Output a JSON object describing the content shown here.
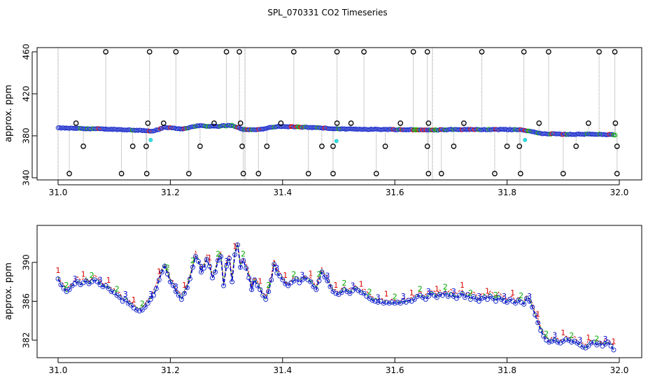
{
  "chart_data": [
    {
      "type": "scatter",
      "title": "SPL_070331  CO2 Timeseries",
      "xlabel": "",
      "ylabel": "approx. ppm",
      "xlim": [
        31.0,
        32.0
      ],
      "ylim": [
        338,
        464
      ],
      "x_ticks": [
        "31.0",
        "31.2",
        "31.4",
        "31.6",
        "31.8",
        "32.0"
      ],
      "y_ticks": [
        "340",
        "380",
        "420",
        "460"
      ],
      "baseline": [
        [
          31.0,
          387.5
        ],
        [
          31.05,
          386.8
        ],
        [
          31.1,
          386.2
        ],
        [
          31.15,
          385.0
        ],
        [
          31.17,
          384.5
        ],
        [
          31.19,
          388.0
        ],
        [
          31.22,
          386.5
        ],
        [
          31.25,
          389.5
        ],
        [
          31.28,
          389.0
        ],
        [
          31.31,
          390.0
        ],
        [
          31.33,
          386.0
        ],
        [
          31.36,
          386.0
        ],
        [
          31.39,
          389.0
        ],
        [
          31.45,
          388.0
        ],
        [
          31.5,
          386.5
        ],
        [
          31.6,
          386.0
        ],
        [
          31.66,
          385.5
        ],
        [
          31.7,
          386.0
        ],
        [
          31.82,
          386.0
        ],
        [
          31.84,
          384.5
        ],
        [
          31.86,
          382.0
        ],
        [
          31.9,
          381.5
        ],
        [
          31.95,
          381.5
        ],
        [
          32.0,
          381.0
        ]
      ],
      "outliers_high": [
        31.085,
        31.163,
        31.21,
        31.3,
        31.323,
        31.42,
        31.497,
        31.545,
        31.633,
        31.658,
        31.755,
        31.83,
        31.874,
        31.964,
        31.992
      ],
      "outliers_low": [
        31.02,
        31.113,
        31.158,
        31.233,
        31.33,
        31.357,
        31.446,
        31.49,
        31.567,
        31.66,
        31.683,
        31.778,
        31.824,
        31.9,
        31.996
      ],
      "outliers_mid_high": [
        31.032,
        31.16,
        31.188,
        31.278,
        31.325,
        31.397,
        31.497,
        31.522,
        31.61,
        31.66,
        31.723,
        31.857,
        31.945,
        31.993
      ],
      "outliers_mid_low": [
        31.045,
        31.133,
        31.157,
        31.253,
        31.328,
        31.372,
        31.47,
        31.49,
        31.583,
        31.658,
        31.705,
        31.8,
        31.822,
        31.923,
        31.996
      ],
      "cyan_points": [
        [
          31.165,
          376
        ],
        [
          31.496,
          375
        ],
        [
          31.832,
          376
        ]
      ],
      "gaps": [
        31.0,
        31.333,
        31.667
      ]
    },
    {
      "type": "line",
      "xlabel": "",
      "ylabel": "approx. ppm",
      "xlim": [
        31.0,
        32.0
      ],
      "ylim": [
        380.2,
        393.8
      ],
      "x_ticks": [
        "31.0",
        "31.2",
        "31.4",
        "31.6",
        "31.8",
        "32.0"
      ],
      "y_ticks": [
        "382",
        "386",
        "390"
      ],
      "series": [
        {
          "name": "1",
          "color": "#dd0000",
          "label": "1"
        },
        {
          "name": "2",
          "color": "#00aa00",
          "label": "2"
        },
        {
          "name": "3",
          "color": "#0000cc",
          "label": "3"
        }
      ],
      "points": [
        [
          31.0,
          388.3
        ],
        [
          31.005,
          387.7
        ],
        [
          31.01,
          387.3
        ],
        [
          31.015,
          387.0
        ],
        [
          31.02,
          387.2
        ],
        [
          31.025,
          387.6
        ],
        [
          31.03,
          387.8
        ],
        [
          31.035,
          388.0
        ],
        [
          31.04,
          387.7
        ],
        [
          31.045,
          387.9
        ],
        [
          31.05,
          388.1
        ],
        [
          31.055,
          387.8
        ],
        [
          31.06,
          388.0
        ],
        [
          31.065,
          388.2
        ],
        [
          31.07,
          388.0
        ],
        [
          31.075,
          387.7
        ],
        [
          31.08,
          387.5
        ],
        [
          31.085,
          387.6
        ],
        [
          31.09,
          387.3
        ],
        [
          31.095,
          387.0
        ],
        [
          31.1,
          386.9
        ],
        [
          31.105,
          386.6
        ],
        [
          31.11,
          386.4
        ],
        [
          31.115,
          386.0
        ],
        [
          31.12,
          386.2
        ],
        [
          31.125,
          385.8
        ],
        [
          31.13,
          385.6
        ],
        [
          31.135,
          385.3
        ],
        [
          31.14,
          385.1
        ],
        [
          31.145,
          385.0
        ],
        [
          31.15,
          385.1
        ],
        [
          31.155,
          385.4
        ],
        [
          31.16,
          385.8
        ],
        [
          31.165,
          386.2
        ],
        [
          31.17,
          386.6
        ],
        [
          31.175,
          387.3
        ],
        [
          31.18,
          388.2
        ],
        [
          31.185,
          389.0
        ],
        [
          31.19,
          389.6
        ],
        [
          31.195,
          388.8
        ],
        [
          31.2,
          388.0
        ],
        [
          31.205,
          387.6
        ],
        [
          31.21,
          387.0
        ],
        [
          31.215,
          386.6
        ],
        [
          31.22,
          386.2
        ],
        [
          31.225,
          386.8
        ],
        [
          31.23,
          387.4
        ],
        [
          31.235,
          388.3
        ],
        [
          31.24,
          389.5
        ],
        [
          31.245,
          390.6
        ],
        [
          31.25,
          390.1
        ],
        [
          31.255,
          389.0
        ],
        [
          31.26,
          389.4
        ],
        [
          31.265,
          390.3
        ],
        [
          31.27,
          389.6
        ],
        [
          31.275,
          388.4
        ],
        [
          31.28,
          389.0
        ],
        [
          31.285,
          390.2
        ],
        [
          31.29,
          390.6
        ],
        [
          31.295,
          387.6
        ],
        [
          31.3,
          389.6
        ],
        [
          31.305,
          390.4
        ],
        [
          31.31,
          388.0
        ],
        [
          31.315,
          390.8
        ],
        [
          31.32,
          391.8
        ],
        [
          31.325,
          389.5
        ],
        [
          31.33,
          390.2
        ],
        [
          31.335,
          389.4
        ],
        [
          31.34,
          388.4
        ],
        [
          31.345,
          387.2
        ],
        [
          31.35,
          388.2
        ],
        [
          31.355,
          387.6
        ],
        [
          31.36,
          387.2
        ],
        [
          31.365,
          386.6
        ],
        [
          31.37,
          386.2
        ],
        [
          31.375,
          387.0
        ],
        [
          31.38,
          388.2
        ],
        [
          31.385,
          389.8
        ],
        [
          31.39,
          388.9
        ],
        [
          31.395,
          388.6
        ],
        [
          31.4,
          388.2
        ],
        [
          31.405,
          387.8
        ],
        [
          31.41,
          387.6
        ],
        [
          31.415,
          387.9
        ],
        [
          31.42,
          388.1
        ],
        [
          31.425,
          388.3
        ],
        [
          31.43,
          387.9
        ],
        [
          31.435,
          388.2
        ],
        [
          31.44,
          388.4
        ],
        [
          31.445,
          388.2
        ],
        [
          31.45,
          388.0
        ],
        [
          31.455,
          387.5
        ],
        [
          31.46,
          387.2
        ],
        [
          31.465,
          388.1
        ],
        [
          31.47,
          389.0
        ],
        [
          31.475,
          388.5
        ],
        [
          31.48,
          388.1
        ],
        [
          31.485,
          387.5
        ],
        [
          31.49,
          387.0
        ],
        [
          31.495,
          386.8
        ],
        [
          31.5,
          386.7
        ],
        [
          31.505,
          386.9
        ],
        [
          31.51,
          387.2
        ],
        [
          31.515,
          387.0
        ],
        [
          31.52,
          386.8
        ],
        [
          31.525,
          387.1
        ],
        [
          31.53,
          387.3
        ],
        [
          31.535,
          387.1
        ],
        [
          31.54,
          386.9
        ],
        [
          31.545,
          386.8
        ],
        [
          31.55,
          386.5
        ],
        [
          31.555,
          386.3
        ],
        [
          31.56,
          386.1
        ],
        [
          31.565,
          386.0
        ],
        [
          31.57,
          385.9
        ],
        [
          31.575,
          386.0
        ],
        [
          31.58,
          385.8
        ],
        [
          31.585,
          385.9
        ],
        [
          31.59,
          385.8
        ],
        [
          31.595,
          385.9
        ],
        [
          31.6,
          385.8
        ],
        [
          31.605,
          385.9
        ],
        [
          31.61,
          385.8
        ],
        [
          31.615,
          386.0
        ],
        [
          31.62,
          385.9
        ],
        [
          31.625,
          386.1
        ],
        [
          31.63,
          386.0
        ],
        [
          31.635,
          386.2
        ],
        [
          31.64,
          386.5
        ],
        [
          31.645,
          386.6
        ],
        [
          31.65,
          386.4
        ],
        [
          31.655,
          386.2
        ],
        [
          31.66,
          386.5
        ],
        [
          31.665,
          386.8
        ],
        [
          31.67,
          386.6
        ],
        [
          31.675,
          386.4
        ],
        [
          31.68,
          386.7
        ],
        [
          31.685,
          386.6
        ],
        [
          31.69,
          386.8
        ],
        [
          31.695,
          386.5
        ],
        [
          31.7,
          386.7
        ],
        [
          31.705,
          386.5
        ],
        [
          31.71,
          386.3
        ],
        [
          31.715,
          386.6
        ],
        [
          31.72,
          386.8
        ],
        [
          31.725,
          386.4
        ],
        [
          31.73,
          386.7
        ],
        [
          31.735,
          386.2
        ],
        [
          31.74,
          386.5
        ],
        [
          31.745,
          386.2
        ],
        [
          31.75,
          386.0
        ],
        [
          31.755,
          386.3
        ],
        [
          31.76,
          386.4
        ],
        [
          31.765,
          386.2
        ],
        [
          31.77,
          386.5
        ],
        [
          31.775,
          386.3
        ],
        [
          31.78,
          386.0
        ],
        [
          31.785,
          386.4
        ],
        [
          31.79,
          386.2
        ],
        [
          31.795,
          386.0
        ],
        [
          31.8,
          385.9
        ],
        [
          31.805,
          386.2
        ],
        [
          31.81,
          386.0
        ],
        [
          31.815,
          385.8
        ],
        [
          31.82,
          386.1
        ],
        [
          31.825,
          385.9
        ],
        [
          31.83,
          385.7
        ],
        [
          31.835,
          386.3
        ],
        [
          31.84,
          386.0
        ],
        [
          31.845,
          385.4
        ],
        [
          31.85,
          384.6
        ],
        [
          31.855,
          383.8
        ],
        [
          31.86,
          383.0
        ],
        [
          31.865,
          382.4
        ],
        [
          31.87,
          382.0
        ],
        [
          31.875,
          381.8
        ],
        [
          31.88,
          381.9
        ],
        [
          31.885,
          382.0
        ],
        [
          31.89,
          381.8
        ],
        [
          31.895,
          381.7
        ],
        [
          31.9,
          381.9
        ],
        [
          31.905,
          382.1
        ],
        [
          31.91,
          382.0
        ],
        [
          31.915,
          381.8
        ],
        [
          31.92,
          381.9
        ],
        [
          31.925,
          381.7
        ],
        [
          31.93,
          381.5
        ],
        [
          31.935,
          381.3
        ],
        [
          31.94,
          381.2
        ],
        [
          31.945,
          381.4
        ],
        [
          31.95,
          381.7
        ],
        [
          31.955,
          381.8
        ],
        [
          31.96,
          381.5
        ],
        [
          31.965,
          381.7
        ],
        [
          31.97,
          381.4
        ],
        [
          31.975,
          381.6
        ],
        [
          31.98,
          381.8
        ],
        [
          31.985,
          381.4
        ],
        [
          31.99,
          381.0
        ]
      ]
    }
  ]
}
